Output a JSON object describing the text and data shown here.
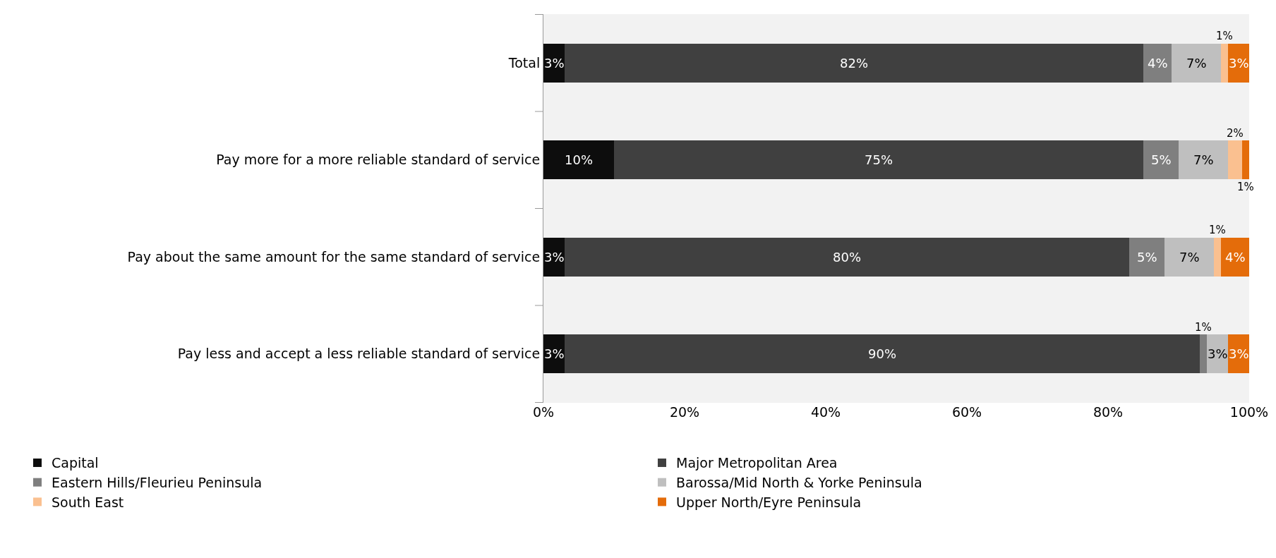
{
  "chart_data": {
    "type": "bar",
    "orientation": "horizontal",
    "stacked": true,
    "categories": [
      "Total",
      "Pay more for a more reliable standard of service",
      "Pay about the same amount for the same standard of service",
      "Pay less and accept a less reliable standard of service"
    ],
    "series": [
      {
        "name": "Capital",
        "color": "#0d0d0d",
        "values": [
          3,
          10,
          3,
          3
        ],
        "value_labels": [
          "3%",
          "10%",
          "3%",
          "3%"
        ]
      },
      {
        "name": "Major Metropolitan Area",
        "color": "#404040",
        "values": [
          82,
          75,
          80,
          90
        ],
        "value_labels": [
          "82%",
          "75%",
          "80%",
          "90%"
        ]
      },
      {
        "name": "Eastern Hills/Fleurieu Peninsula",
        "color": "#7f7f7f",
        "values": [
          4,
          5,
          5,
          1
        ],
        "value_labels": [
          "4%",
          "5%",
          "5%",
          "1%"
        ]
      },
      {
        "name": "Barossa/Mid North & Yorke Peninsula",
        "color": "#bfbfbf",
        "values": [
          7,
          7,
          7,
          3
        ],
        "value_labels": [
          "7%",
          "7%",
          "7%",
          "3%"
        ]
      },
      {
        "name": "South East",
        "color": "#fac090",
        "values": [
          1,
          2,
          1,
          null
        ],
        "value_labels": [
          "1%",
          "2%",
          "1%",
          null
        ]
      },
      {
        "name": "Upper North/Eyre Peninsula",
        "color": "#e46c0a",
        "values": [
          3,
          1,
          4,
          3
        ],
        "value_labels": [
          "3%",
          "1%",
          "4%",
          "3%"
        ]
      }
    ],
    "xlim": [
      0,
      100
    ],
    "xticks": [
      {
        "value": 0,
        "label": "0%"
      },
      {
        "value": 20,
        "label": "20%"
      },
      {
        "value": 40,
        "label": "40%"
      },
      {
        "value": 60,
        "label": "60%"
      },
      {
        "value": 80,
        "label": "80%"
      },
      {
        "value": 100,
        "label": "100%"
      }
    ],
    "grid": false,
    "legend": "bottom"
  }
}
